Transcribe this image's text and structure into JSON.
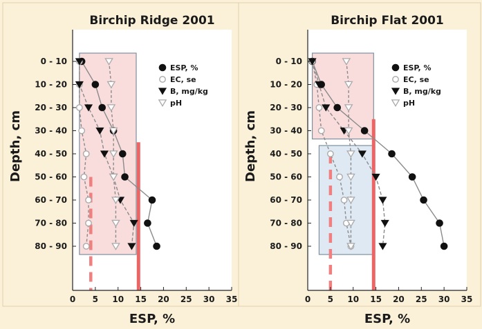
{
  "ylabel": "Depth, cm",
  "colors": {
    "background": "#fbf1d8",
    "plot_area": "#ffffff",
    "pink_region": "#f9dcdc",
    "blue_region": "#dfe9f4",
    "region_border": "#7e8f9e",
    "red_threshold": "#ec6565",
    "red_dashed": "#f08080",
    "line": "#8a8a8a",
    "marker_dark": "#111111",
    "marker_light": "#aaaaaa"
  },
  "chart_data": [
    {
      "type": "line",
      "title": "Birchip Ridge 2001",
      "xlabel": "ESP, %",
      "ylabel": "Depth, cm",
      "xlim": [
        0,
        35
      ],
      "xticks": [
        0,
        5,
        10,
        15,
        20,
        25,
        30,
        35
      ],
      "categories": [
        "0 - 10",
        "10 - 20",
        "20 - 30",
        "30 - 40",
        "40 - 50",
        "50 - 60",
        "60 - 70",
        "70 - 80",
        "80 - 90"
      ],
      "series": [
        {
          "name": "ESP, %",
          "marker": "filled-circle",
          "x": [
            2,
            5,
            6.5,
            9,
            11,
            11.5,
            17.5,
            16.5,
            18.5
          ]
        },
        {
          "name": "EC, se",
          "marker": "open-circle",
          "x": [
            1.5,
            1.5,
            1.5,
            2,
            3,
            2.5,
            3.5,
            3.5,
            3
          ]
        },
        {
          "name": "B, mg/kg",
          "marker": "filled-triangle-down",
          "x": [
            1.5,
            1.5,
            3.5,
            6,
            7,
            9,
            10.5,
            13.5,
            13
          ]
        },
        {
          "name": "pH",
          "marker": "open-triangle-down",
          "x": [
            8,
            8.5,
            8.5,
            9,
            9,
            9,
            9.5,
            9.5,
            9.5
          ]
        }
      ],
      "regions": [
        {
          "color": "pink",
          "xmin": 1.5,
          "xmax": 14,
          "ymin": "0 - 10",
          "ymax": "80 - 90"
        }
      ],
      "threshold_lines": [
        {
          "style": "solid",
          "color": "red",
          "x": 14.5,
          "from_depth": 40
        },
        {
          "style": "dashed",
          "color": "red",
          "x": 4,
          "from_depth": 55
        }
      ],
      "legend": "top-right"
    },
    {
      "type": "line",
      "title": "Birchip Flat 2001",
      "xlabel": "ESP, %",
      "ylabel": "Depth, cm",
      "xlim": [
        0,
        35
      ],
      "xticks": [
        0,
        5,
        10,
        15,
        20,
        25,
        30,
        35
      ],
      "categories": [
        "0 - 10",
        "10 - 20",
        "20 - 30",
        "30 - 40",
        "40 - 50",
        "50 - 60",
        "60 - 70",
        "70 - 80",
        "80 - 90"
      ],
      "series": [
        {
          "name": "ESP, %",
          "marker": "filled-circle",
          "x": [
            1,
            3,
            6.5,
            12.5,
            18.5,
            23,
            25.5,
            29,
            30
          ]
        },
        {
          "name": "EC, se",
          "marker": "open-circle",
          "x": [
            1,
            2,
            2.5,
            3,
            5,
            7,
            8,
            8.5,
            9.5
          ]
        },
        {
          "name": "B, mg/kg",
          "marker": "filled-triangle-down",
          "x": [
            1,
            2.5,
            4,
            8,
            12,
            15,
            16.5,
            17,
            16.5
          ]
        },
        {
          "name": "pH",
          "marker": "open-triangle-down",
          "x": [
            8.5,
            9,
            9,
            9,
            9.5,
            9.5,
            9.5,
            9.5,
            9.5
          ]
        }
      ],
      "regions": [
        {
          "color": "pink",
          "xmin": 1,
          "xmax": 14.5,
          "ymin": "0 - 10",
          "ymax": "30 - 40"
        },
        {
          "color": "blue",
          "xmin": 2.5,
          "xmax": 14.5,
          "ymin": "40 - 50",
          "ymax": "80 - 90"
        }
      ],
      "threshold_lines": [
        {
          "style": "solid",
          "color": "red",
          "x": 14.5,
          "from_depth": 30
        },
        {
          "style": "dashed",
          "color": "red",
          "x": 5,
          "from_depth": 45
        }
      ],
      "legend": "top-right"
    }
  ]
}
